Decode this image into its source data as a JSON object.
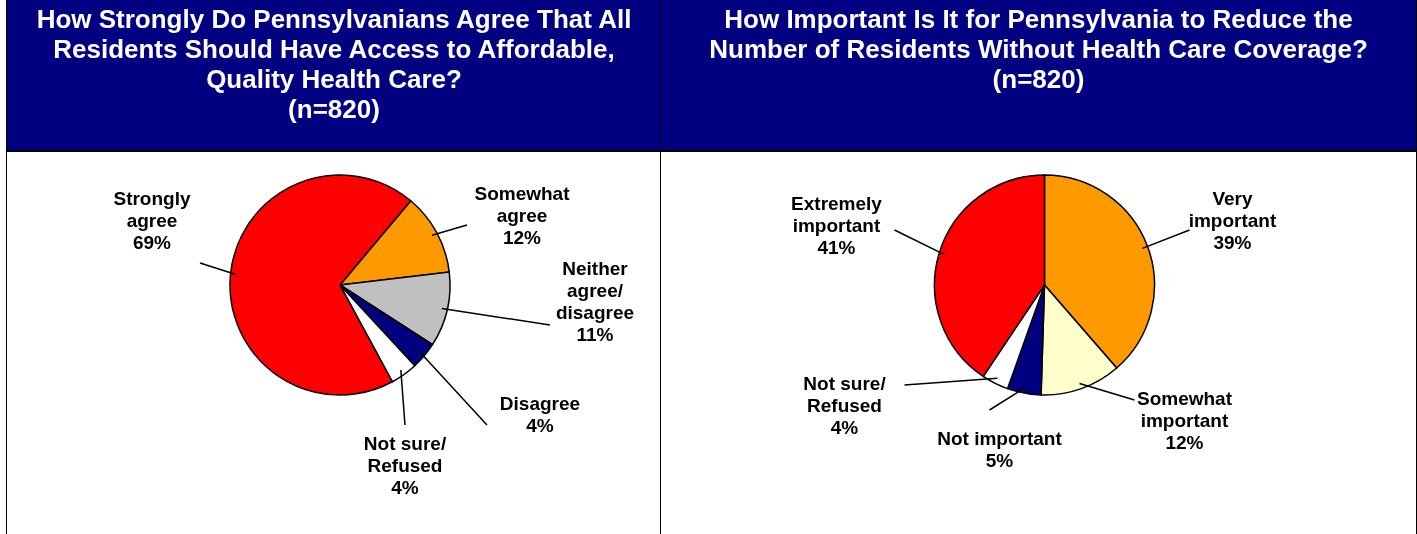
{
  "chart_data": [
    {
      "type": "pie",
      "title": "How Strongly Do Pennsylvanians Agree That All Residents Should Have Access to Affordable, Quality Health Care?",
      "subtitle": "(n=820)",
      "categories": [
        "Somewhat agree",
        "Neither agree/ disagree",
        "Disagree",
        "Not sure/ Refused",
        "Strongly agree"
      ],
      "values": [
        12,
        11,
        4,
        4,
        69
      ],
      "value_labels": [
        "12%",
        "11%",
        "4%",
        "4%",
        "69%"
      ],
      "colors": [
        "#ff9900",
        "#c0c0c0",
        "#000080",
        "#ffffff",
        "#ff0000"
      ],
      "legend": false
    },
    {
      "type": "pie",
      "title": "How Important Is It for Pennsylvania to Reduce the Number of Residents Without Health Care Coverage?",
      "subtitle": "(n=820)",
      "categories": [
        "Very important",
        "Somewhat important",
        "Not important",
        "Not sure/ Refused",
        "Extremely important"
      ],
      "values": [
        39,
        12,
        5,
        4,
        41
      ],
      "value_labels": [
        "39%",
        "12%",
        "5%",
        "4%",
        "41%"
      ],
      "colors": [
        "#ff9900",
        "#ffffcc",
        "#000080",
        "#ffffff",
        "#ff0000"
      ],
      "legend": false
    }
  ]
}
